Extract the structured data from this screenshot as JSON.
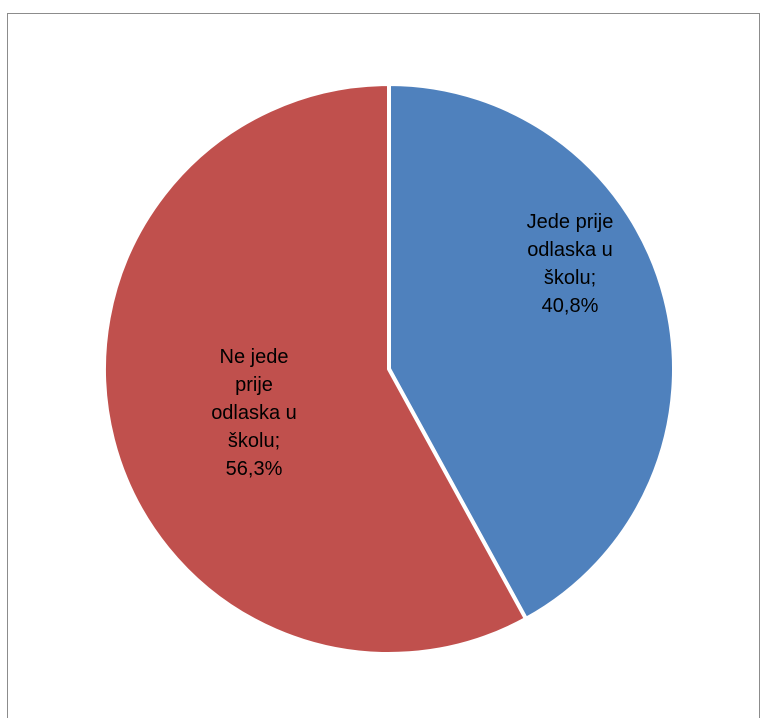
{
  "chart_data": {
    "type": "pie",
    "title": "",
    "slices": [
      {
        "label": "Jede prije odlaska u školu",
        "value": 40.8,
        "display": "40,8%",
        "label_lines": [
          "Jede prije",
          "odlaska u",
          "školu;",
          "40,8%"
        ],
        "color": "#4f81bd"
      },
      {
        "label": "Ne jede prije odlaska u školu",
        "value": 56.3,
        "display": "56,3%",
        "label_lines": [
          "Ne jede",
          "prije",
          "odlaska u",
          "školu;",
          "56,3%"
        ],
        "color": "#c0504d"
      }
    ]
  }
}
